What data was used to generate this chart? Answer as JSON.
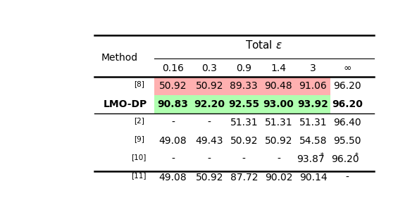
{
  "col_labels": [
    "Method",
    "0.16",
    "0.3",
    "0.9",
    "1.4",
    "3",
    "∞"
  ],
  "rows": [
    {
      "method": "[8]",
      "superscript": true,
      "values": [
        "50.92",
        "50.92",
        "89.33",
        "90.48",
        "91.06",
        "96.20"
      ],
      "highlight": "red",
      "bold": false
    },
    {
      "method": "LMO-DP",
      "superscript": false,
      "values": [
        "90.83",
        "92.20",
        "92.55",
        "93.00",
        "93.92",
        "96.20"
      ],
      "highlight": "green",
      "bold": true
    },
    {
      "method": "[2]",
      "superscript": true,
      "values": [
        "-",
        "-",
        "51.31",
        "51.31",
        "51.31",
        "96.40"
      ],
      "highlight": "none",
      "bold": false
    },
    {
      "method": "[9]",
      "superscript": true,
      "values": [
        "49.08",
        "49.43",
        "50.92",
        "50.92",
        "54.58",
        "95.50"
      ],
      "highlight": "none",
      "bold": false
    },
    {
      "method": "[10]",
      "superscript": true,
      "values": [
        "-",
        "-",
        "-",
        "-",
        "93.87*",
        "96.20*"
      ],
      "highlight": "none",
      "bold": false
    },
    {
      "method": "[11]",
      "superscript": true,
      "values": [
        "49.08",
        "50.92",
        "87.72",
        "90.02",
        "90.14",
        "-"
      ],
      "highlight": "none",
      "bold": false
    }
  ],
  "red_color": "#ffb0b0",
  "green_color": "#b0ffb0",
  "fig_width": 5.92,
  "fig_height": 2.98,
  "dpi": 100
}
